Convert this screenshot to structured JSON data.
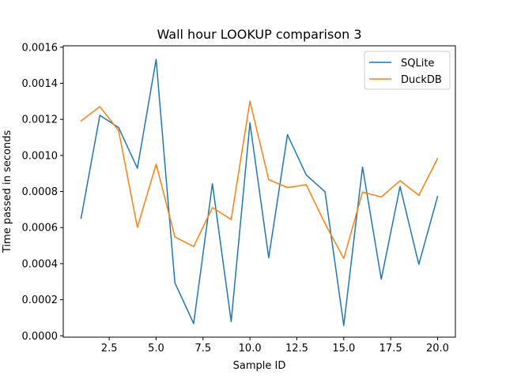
{
  "chart_data": {
    "type": "line",
    "title": "Wall hour LOOKUP comparison 3",
    "xlabel": "Sample ID",
    "ylabel": "Time passed in seconds",
    "xlim": [
      0.05,
      20.95
    ],
    "ylim": [
      -7.5e-06,
      0.0016081
    ],
    "xticks": [
      2.5,
      5.0,
      7.5,
      10.0,
      12.5,
      15.0,
      17.5,
      20.0
    ],
    "xtick_labels": [
      "2.5",
      "5.0",
      "7.5",
      "10.0",
      "12.5",
      "15.0",
      "17.5",
      "20.0"
    ],
    "yticks": [
      0,
      0.0002,
      0.0004,
      0.0006,
      0.0008,
      0.001,
      0.0012,
      0.0014,
      0.0016
    ],
    "ytick_labels": [
      "0.0000",
      "0.0002",
      "0.0004",
      "0.0006",
      "0.0008",
      "0.0010",
      "0.0012",
      "0.0014",
      "0.0016"
    ],
    "legend_position": "top-right",
    "grid": false,
    "x": [
      1,
      2,
      3,
      4,
      5,
      6,
      7,
      8,
      9,
      10,
      11,
      12,
      13,
      14,
      15,
      16,
      17,
      18,
      19,
      20
    ],
    "series": [
      {
        "name": "SQLite",
        "color": "#1f77b4",
        "values": [
          0.000652,
          0.001223,
          0.001155,
          0.000929,
          0.001533,
          0.000294,
          6.8e-05,
          0.000843,
          7.9e-05,
          0.001181,
          0.000433,
          0.001115,
          0.000892,
          0.000799,
          5.7e-05,
          0.000936,
          0.000314,
          0.000828,
          0.000396,
          0.000772
        ]
      },
      {
        "name": "DuckDB",
        "color": "#ff7f0e",
        "values": [
          0.001192,
          0.001271,
          0.001138,
          0.000601,
          0.000952,
          0.000548,
          0.000495,
          0.000711,
          0.000645,
          0.001301,
          0.000866,
          0.000822,
          0.000838,
          0.000623,
          0.000429,
          0.000797,
          0.00077,
          0.00086,
          0.000779,
          0.000983
        ]
      }
    ]
  }
}
